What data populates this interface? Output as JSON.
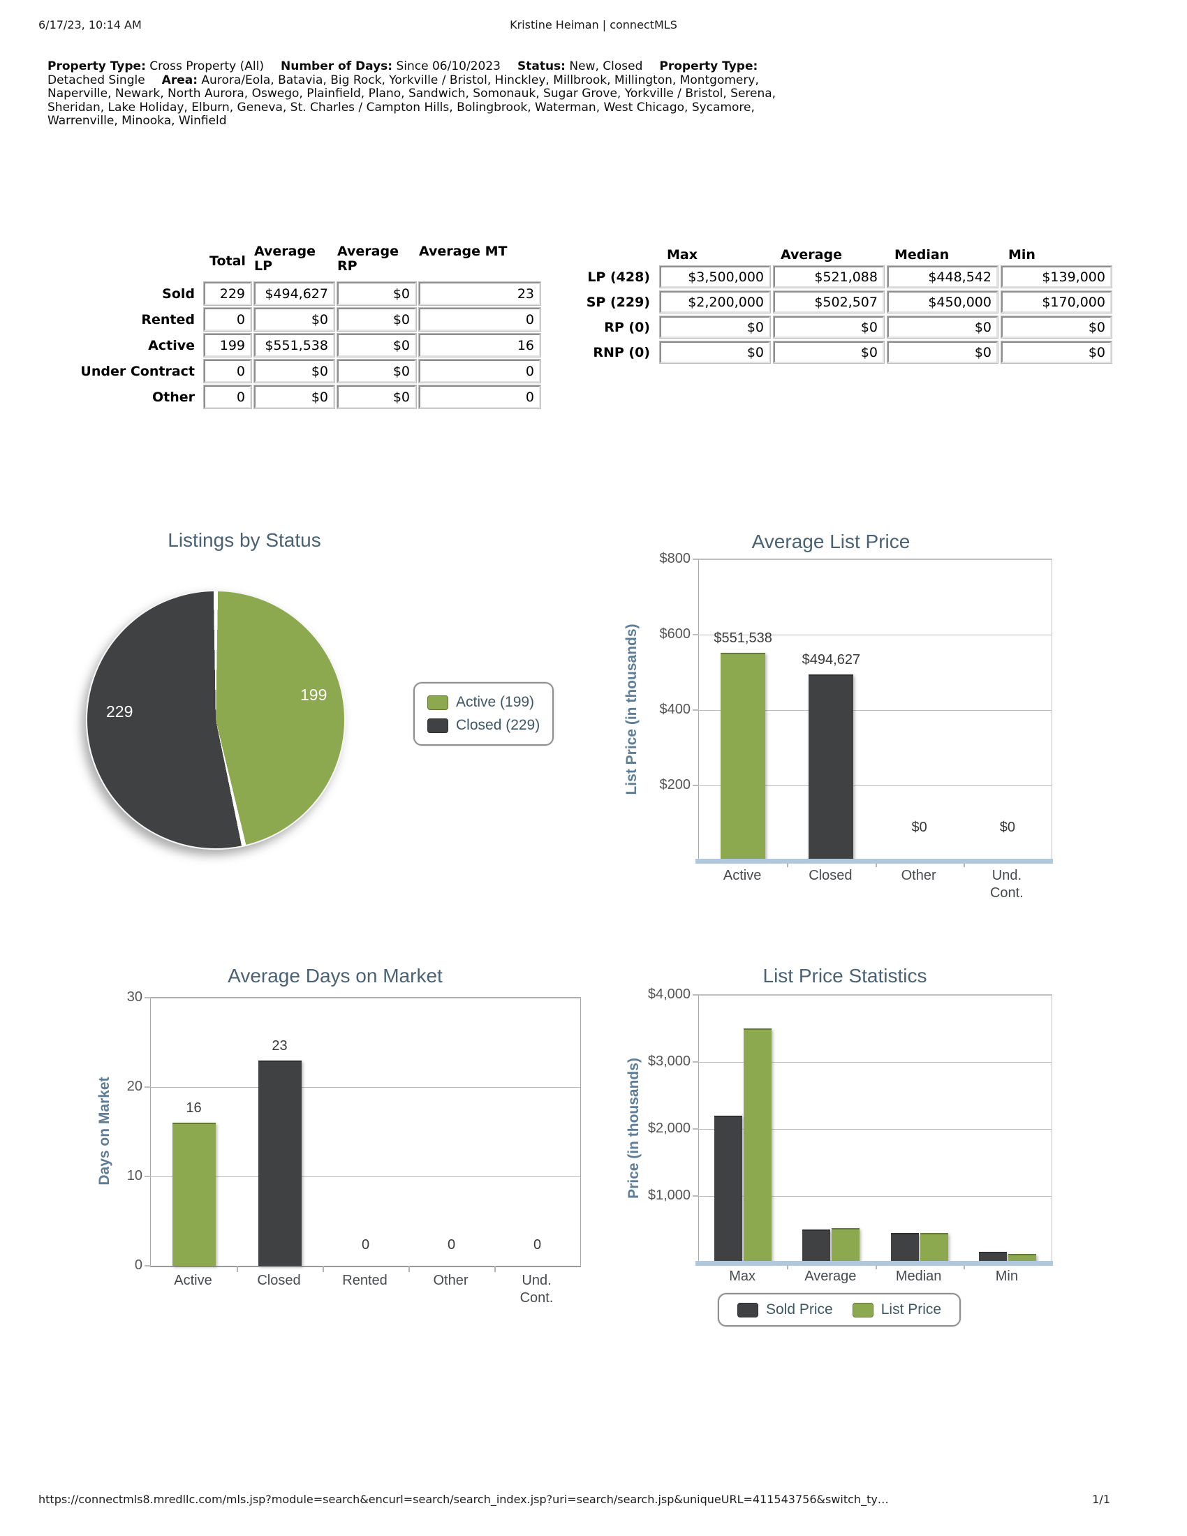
{
  "page": {
    "header_left": "6/17/23, 10:14 AM",
    "header_center": "Kristine Heiman | connectMLS",
    "footer_url": "https://connectmls8.mredllc.com/mls.jsp?module=search&encurl=search/search_index.jsp?uri=search/search.jsp&uniqueURL=411543756&switch_ty…",
    "footer_page": "1/1"
  },
  "criteria": {
    "segments": [
      {
        "label": "Property Type:",
        "value": "Cross Property (All)"
      },
      {
        "label": "Number of Days:",
        "value": "Since 06/10/2023"
      },
      {
        "label": "Status:",
        "value": "New, Closed"
      },
      {
        "label": "Property Type:",
        "value": "Detached Single"
      },
      {
        "label": "Area:",
        "value": "Aurora/Eola, Batavia, Big Rock, Yorkville / Bristol, Hinckley, Millbrook, Millington, Montgomery, Naperville, Newark, North Aurora, Oswego, Plainfield, Plano, Sandwich, Somonauk, Sugar Grove, Yorkville / Bristol, Serena, Sheridan, Lake Holiday, Elburn, Geneva, St. Charles / Campton Hills, Bolingbrook, Waterman, West Chicago, Sycamore, Warrenville, Minooka, Winfield"
      }
    ]
  },
  "status_table": {
    "columns": [
      "Total",
      "Average LP",
      "Average RP",
      "Average MT"
    ],
    "rows": [
      {
        "label": "Sold",
        "cells": [
          "229",
          "$494,627",
          "$0",
          "23"
        ]
      },
      {
        "label": "Rented",
        "cells": [
          "0",
          "$0",
          "$0",
          "0"
        ]
      },
      {
        "label": "Active",
        "cells": [
          "199",
          "$551,538",
          "$0",
          "16"
        ]
      },
      {
        "label": "Under Contract",
        "cells": [
          "0",
          "$0",
          "$0",
          "0"
        ]
      },
      {
        "label": "Other",
        "cells": [
          "0",
          "$0",
          "$0",
          "0"
        ]
      }
    ]
  },
  "price_table": {
    "columns": [
      "Max",
      "Average",
      "Median",
      "Min"
    ],
    "rows": [
      {
        "label": "LP (428)",
        "cells": [
          "$3,500,000",
          "$521,088",
          "$448,542",
          "$139,000"
        ]
      },
      {
        "label": "SP (229)",
        "cells": [
          "$2,200,000",
          "$502,507",
          "$450,000",
          "$170,000"
        ]
      },
      {
        "label": "RP (0)",
        "cells": [
          "$0",
          "$0",
          "$0",
          "$0"
        ]
      },
      {
        "label": "RNP (0)",
        "cells": [
          "$0",
          "$0",
          "$0",
          "$0"
        ]
      }
    ]
  },
  "colors": {
    "active_green": "#8CA94F",
    "closed_dark": "#3F4142",
    "title_slate": "#4A6273",
    "axis_label_blue": "#5E7E97",
    "baseline_blue": "#AFC8DB"
  },
  "chart_data": [
    {
      "type": "pie",
      "title": "Listings by Status",
      "labels": [
        "Active",
        "Closed"
      ],
      "values": [
        199,
        229
      ],
      "colors": [
        "#8CA94F",
        "#3F4142"
      ],
      "slice_value_labels": [
        "199",
        "229"
      ],
      "legend": [
        "Active (199)",
        "Closed (229)"
      ],
      "legend_position": "right"
    },
    {
      "type": "bar",
      "title": "Average List Price",
      "ylabel": "List Price (in thousands)",
      "categories": [
        "Active",
        "Closed",
        "Other",
        "Und.\nCont."
      ],
      "values": [
        551538,
        494627,
        0,
        0
      ],
      "bar_labels": [
        "$551,538",
        "$494,627",
        "$0",
        "$0"
      ],
      "bar_colors": [
        "#8CA94F",
        "#3F4142",
        "#8CA94F",
        "#3F4142"
      ],
      "ymax": 800000,
      "yticks": [
        {
          "value": 800000,
          "label": "$800"
        },
        {
          "value": 600000,
          "label": "$600"
        },
        {
          "value": 400000,
          "label": "$400"
        },
        {
          "value": 200000,
          "label": "$200"
        }
      ],
      "grid": true,
      "legend_position": "none"
    },
    {
      "type": "bar",
      "title": "Average Days on Market",
      "ylabel": "Days on Market",
      "categories": [
        "Active",
        "Closed",
        "Rented",
        "Other",
        "Und.\nCont."
      ],
      "values": [
        16,
        23,
        0,
        0,
        0
      ],
      "bar_labels": [
        "16",
        "23",
        "0",
        "0",
        "0"
      ],
      "bar_colors": [
        "#8CA94F",
        "#3F4142",
        "#8CA94F",
        "#3F4142",
        "#8CA94F"
      ],
      "ymax": 30,
      "yticks": [
        {
          "value": 30,
          "label": "30"
        },
        {
          "value": 20,
          "label": "20"
        },
        {
          "value": 10,
          "label": "10"
        },
        {
          "value": 0,
          "label": "0"
        }
      ],
      "grid": true,
      "legend_position": "none"
    },
    {
      "type": "bar",
      "grouped": true,
      "title": "List Price Statistics",
      "ylabel": "Price (in thousands)",
      "categories": [
        "Max",
        "Average",
        "Median",
        "Min"
      ],
      "series": [
        {
          "name": "Sold Price",
          "color": "#3F4142",
          "values": [
            2200000,
            502507,
            450000,
            170000
          ]
        },
        {
          "name": "List Price",
          "color": "#8CA94F",
          "values": [
            3500000,
            521088,
            448542,
            139000
          ]
        }
      ],
      "ymax": 4000000,
      "yticks": [
        {
          "value": 4000000,
          "label": "$4,000"
        },
        {
          "value": 3000000,
          "label": "$3,000"
        },
        {
          "value": 2000000,
          "label": "$2,000"
        },
        {
          "value": 1000000,
          "label": "$1,000"
        }
      ],
      "legend": [
        "Sold Price",
        "List Price"
      ],
      "legend_position": "bottom",
      "grid": true
    }
  ]
}
